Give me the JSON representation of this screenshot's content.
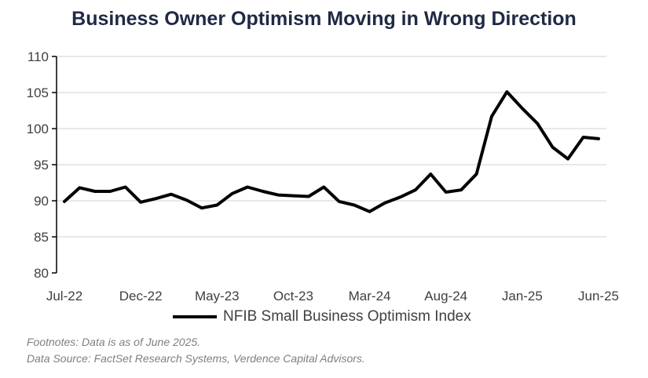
{
  "title": "Business Owner Optimism Moving in Wrong Direction",
  "legend_label": "NFIB Small Business Optimism Index",
  "footnote": "Footnotes: Data is as of June 2025.",
  "source": "Data Source: FactSet Research Systems, Verdence Capital Advisors.",
  "colors": {
    "line": "#000000",
    "grid": "#d9d9d9",
    "axis": "#000000",
    "text": "#404040"
  },
  "chart_data": {
    "type": "line",
    "title": "Business Owner Optimism Moving in Wrong Direction",
    "xlabel": "",
    "ylabel": "",
    "ylim": [
      80,
      110
    ],
    "yticks": [
      80,
      85,
      90,
      95,
      100,
      105,
      110
    ],
    "x": [
      "Jul-22",
      "Aug-22",
      "Sep-22",
      "Oct-22",
      "Nov-22",
      "Dec-22",
      "Jan-23",
      "Feb-23",
      "Mar-23",
      "Apr-23",
      "May-23",
      "Jun-23",
      "Jul-23",
      "Aug-23",
      "Sep-23",
      "Oct-23",
      "Nov-23",
      "Dec-23",
      "Jan-24",
      "Feb-24",
      "Mar-24",
      "Apr-24",
      "May-24",
      "Jun-24",
      "Jul-24",
      "Aug-24",
      "Sep-24",
      "Oct-24",
      "Nov-24",
      "Dec-24",
      "Jan-25",
      "Feb-25",
      "Mar-25",
      "Apr-25",
      "May-25",
      "Jun-25"
    ],
    "xtick_labels": [
      "Jul-22",
      "Dec-22",
      "May-23",
      "Oct-23",
      "Mar-24",
      "Aug-24",
      "Jan-25",
      "Jun-25"
    ],
    "xtick_indices": [
      0,
      5,
      10,
      15,
      20,
      25,
      30,
      35
    ],
    "series": [
      {
        "name": "NFIB Small Business Optimism Index",
        "values": [
          89.9,
          91.8,
          91.3,
          91.3,
          91.9,
          89.8,
          90.3,
          90.9,
          90.1,
          89.0,
          89.4,
          91.0,
          91.9,
          91.3,
          90.8,
          90.7,
          90.6,
          91.9,
          89.9,
          89.4,
          88.5,
          89.7,
          90.5,
          91.5,
          93.7,
          91.2,
          91.5,
          93.7,
          101.7,
          105.1,
          102.8,
          100.7,
          97.4,
          95.8,
          98.8,
          98.6
        ]
      }
    ],
    "grid": true,
    "legend": "bottom"
  }
}
